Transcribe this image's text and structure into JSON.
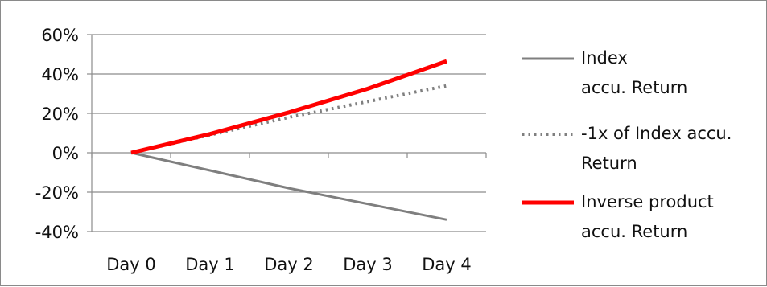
{
  "chart_data": {
    "type": "line",
    "categories": [
      "Day 0",
      "Day 1",
      "Day 2",
      "Day 3",
      "Day 4"
    ],
    "ylim": [
      -0.4,
      0.6
    ],
    "yticks": [
      -0.4,
      -0.2,
      0,
      0.2,
      0.4,
      0.6
    ],
    "ytick_labels": [
      "-40%",
      "-20%",
      "0%",
      "20%",
      "40%",
      "60%"
    ],
    "grid": true,
    "legend_position": "right",
    "series": [
      {
        "name": "Index accu. Return",
        "legend_lines": [
          "Index",
          "accu. Return"
        ],
        "values": [
          0,
          -0.09,
          -0.18,
          -0.26,
          -0.34
        ],
        "color": "#7f7f7f",
        "style": "solid"
      },
      {
        "name": "-1x of Index accu. Return",
        "legend_lines": [
          "-1x of Index accu.",
          "Return"
        ],
        "values": [
          0,
          0.09,
          0.18,
          0.26,
          0.34
        ],
        "color": "#7f7f7f",
        "style": "dotted"
      },
      {
        "name": "Inverse product accu. Return",
        "legend_lines": [
          "Inverse product",
          "accu. Return"
        ],
        "values": [
          0,
          0.095,
          0.205,
          0.325,
          0.465
        ],
        "color": "#ff0000",
        "style": "solid"
      }
    ]
  }
}
